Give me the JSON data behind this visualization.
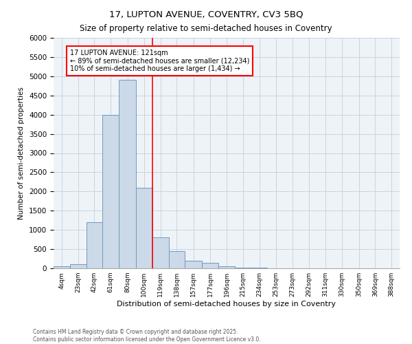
{
  "title_line1": "17, LUPTON AVENUE, COVENTRY, CV3 5BQ",
  "title_line2": "Size of property relative to semi-detached houses in Coventry",
  "xlabel": "Distribution of semi-detached houses by size in Coventry",
  "ylabel": "Number of semi-detached properties",
  "bar_color": "#ccd9e8",
  "bar_edge_color": "#7099bb",
  "annotation_line1": "17 LUPTON AVENUE: 121sqm",
  "annotation_line2": "← 89% of semi-detached houses are smaller (12,234)",
  "annotation_line3": "10% of semi-detached houses are larger (1,434) →",
  "property_line_x": 119,
  "categories": [
    "4sqm",
    "23sqm",
    "42sqm",
    "61sqm",
    "80sqm",
    "100sqm",
    "119sqm",
    "138sqm",
    "157sqm",
    "177sqm",
    "196sqm",
    "215sqm",
    "234sqm",
    "253sqm",
    "273sqm",
    "292sqm",
    "311sqm",
    "330sqm",
    "350sqm",
    "369sqm",
    "388sqm"
  ],
  "bin_edges": [
    4,
    23,
    42,
    61,
    80,
    100,
    119,
    138,
    157,
    177,
    196,
    215,
    234,
    253,
    273,
    292,
    311,
    330,
    350,
    369,
    388
  ],
  "values": [
    55,
    105,
    1200,
    4000,
    4900,
    2100,
    800,
    450,
    200,
    150,
    50,
    25,
    15,
    8,
    5,
    3,
    2,
    1,
    1,
    1,
    1
  ],
  "ylim": [
    0,
    6000
  ],
  "yticks": [
    0,
    500,
    1000,
    1500,
    2000,
    2500,
    3000,
    3500,
    4000,
    4500,
    5000,
    5500,
    6000
  ],
  "footer_line1": "Contains HM Land Registry data © Crown copyright and database right 2025.",
  "footer_line2": "Contains public sector information licensed under the Open Government Licence v3.0.",
  "background_color": "#ffffff",
  "grid_color": "#c8d4e0",
  "ax_bg_color": "#eef3f8"
}
